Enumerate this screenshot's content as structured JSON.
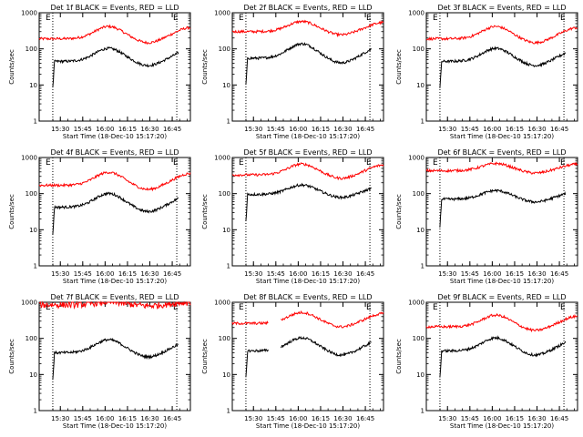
{
  "chart_data": [
    {
      "type": "line",
      "title": "Det 1f BLACK = Events, RED = LLD",
      "xlabel": "Start Time (18-Dec-10 15:17:20)",
      "ylabel": "Counts/sec",
      "yscale": "log",
      "ylim": [
        1,
        1000
      ],
      "xlim": [
        0,
        100
      ],
      "x_ticks": [
        "15:30",
        "15:45",
        "16:00",
        "16:15",
        "16:30",
        "16:45"
      ],
      "y_ticks": [
        "1",
        "10",
        "100",
        "1000"
      ],
      "markers": [
        {
          "label": "E",
          "x": 9
        },
        {
          "label": "E",
          "x": 91
        }
      ],
      "series": [
        {
          "color": "#ff0000",
          "base": 190,
          "amp": 0.34,
          "start": 0,
          "end": 100
        },
        {
          "color": "#000000",
          "base": 45,
          "amp": 0.36,
          "start": 9,
          "end": 92,
          "drop_start": true
        }
      ]
    },
    {
      "type": "line",
      "title": "Det 2f BLACK = Events, RED = LLD",
      "xlabel": "Start Time (18-Dec-10 15:17:20)",
      "ylabel": "Counts/sec",
      "yscale": "log",
      "ylim": [
        1,
        1000
      ],
      "xlim": [
        0,
        100
      ],
      "x_ticks": [
        "15:30",
        "15:45",
        "16:00",
        "16:15",
        "16:30",
        "16:45"
      ],
      "y_ticks": [
        "1",
        "10",
        "100",
        "1000"
      ],
      "markers": [
        {
          "label": "E",
          "x": 9
        },
        {
          "label": "E",
          "x": 91
        }
      ],
      "series": [
        {
          "color": "#ff0000",
          "base": 300,
          "amp": 0.28,
          "start": 0,
          "end": 100
        },
        {
          "color": "#000000",
          "base": 55,
          "amp": 0.4,
          "start": 9,
          "end": 92,
          "drop_start": true
        }
      ]
    },
    {
      "type": "line",
      "title": "Det 3f BLACK = Events, RED = LLD",
      "xlabel": "Start Time (18-Dec-10 15:17:20)",
      "ylabel": "Counts/sec",
      "yscale": "log",
      "ylim": [
        1,
        1000
      ],
      "xlim": [
        0,
        100
      ],
      "x_ticks": [
        "15:30",
        "15:45",
        "16:00",
        "16:15",
        "16:30",
        "16:45"
      ],
      "y_ticks": [
        "1",
        "10",
        "100",
        "1000"
      ],
      "markers": [
        {
          "label": "E",
          "x": 9
        },
        {
          "label": "E",
          "x": 91
        }
      ],
      "series": [
        {
          "color": "#ff0000",
          "base": 190,
          "amp": 0.34,
          "start": 0,
          "end": 100
        },
        {
          "color": "#000000",
          "base": 45,
          "amp": 0.36,
          "start": 9,
          "end": 92,
          "drop_start": true
        }
      ]
    },
    {
      "type": "line",
      "title": "Det 4f BLACK = Events, RED = LLD",
      "xlabel": "Start Time (18-Dec-10 15:17:20)",
      "ylabel": "Counts/sec",
      "yscale": "log",
      "ylim": [
        1,
        1000
      ],
      "xlim": [
        0,
        100
      ],
      "x_ticks": [
        "15:30",
        "15:45",
        "16:00",
        "16:15",
        "16:30",
        "16:45"
      ],
      "y_ticks": [
        "1",
        "10",
        "100",
        "1000"
      ],
      "markers": [
        {
          "label": "E",
          "x": 9
        },
        {
          "label": "E",
          "x": 91
        }
      ],
      "series": [
        {
          "color": "#ff0000",
          "base": 170,
          "amp": 0.36,
          "start": 0,
          "end": 100
        },
        {
          "color": "#000000",
          "base": 42,
          "amp": 0.38,
          "start": 9,
          "end": 92,
          "drop_start": true
        }
      ]
    },
    {
      "type": "line",
      "title": "Det 5f BLACK = Events, RED = LLD",
      "xlabel": "Start Time (18-Dec-10 15:17:20)",
      "ylabel": "Counts/sec",
      "yscale": "log",
      "ylim": [
        1,
        1000
      ],
      "xlim": [
        0,
        100
      ],
      "x_ticks": [
        "15:30",
        "15:45",
        "16:00",
        "16:15",
        "16:30",
        "16:45"
      ],
      "y_ticks": [
        "1",
        "10",
        "100",
        "1000"
      ],
      "markers": [
        {
          "label": "E",
          "x": 9
        },
        {
          "label": "E",
          "x": 91
        }
      ],
      "series": [
        {
          "color": "#ff0000",
          "base": 330,
          "amp": 0.3,
          "start": 0,
          "end": 100
        },
        {
          "color": "#000000",
          "base": 95,
          "amp": 0.26,
          "start": 9,
          "end": 92,
          "drop_start": true
        }
      ]
    },
    {
      "type": "line",
      "title": "Det 6f BLACK = Events, RED = LLD",
      "xlabel": "Start Time (18-Dec-10 15:17:20)",
      "ylabel": "Counts/sec",
      "yscale": "log",
      "ylim": [
        1,
        1000
      ],
      "xlim": [
        0,
        100
      ],
      "x_ticks": [
        "15:30",
        "15:45",
        "16:00",
        "16:15",
        "16:30",
        "16:45"
      ],
      "y_ticks": [
        "1",
        "10",
        "100",
        "1000"
      ],
      "markers": [
        {
          "label": "E",
          "x": 9
        },
        {
          "label": "E",
          "x": 91
        }
      ],
      "series": [
        {
          "color": "#ff0000",
          "base": 430,
          "amp": 0.2,
          "start": 0,
          "end": 100
        },
        {
          "color": "#000000",
          "base": 70,
          "amp": 0.24,
          "start": 9,
          "end": 92,
          "drop_start": true
        }
      ]
    },
    {
      "type": "line",
      "title": "Det 7f BLACK = Events, RED = LLD",
      "xlabel": "Start Time (18-Dec-10 15:17:20)",
      "ylabel": "Counts/sec",
      "yscale": "log",
      "ylim": [
        1,
        1000
      ],
      "xlim": [
        0,
        100
      ],
      "x_ticks": [
        "15:30",
        "15:45",
        "16:00",
        "16:15",
        "16:30",
        "16:45"
      ],
      "y_ticks": [
        "1",
        "10",
        "100",
        "1000"
      ],
      "markers": [
        {
          "label": "E",
          "x": 9
        },
        {
          "label": "E",
          "x": 91
        }
      ],
      "series": [
        {
          "color": "#ff0000",
          "base": 850,
          "amp": 0.08,
          "start": 0,
          "end": 100,
          "noise": 0.09
        },
        {
          "color": "#000000",
          "base": 40,
          "amp": 0.36,
          "start": 9,
          "end": 92,
          "drop_start": true
        }
      ]
    },
    {
      "type": "line",
      "title": "Det 8f BLACK = Events, RED = LLD",
      "xlabel": "Start Time (18-Dec-10 15:17:20)",
      "ylabel": "Counts/sec",
      "yscale": "log",
      "ylim": [
        1,
        1000
      ],
      "xlim": [
        0,
        100
      ],
      "x_ticks": [
        "15:30",
        "15:45",
        "16:00",
        "16:15",
        "16:30",
        "16:45"
      ],
      "y_ticks": [
        "1",
        "10",
        "100",
        "1000"
      ],
      "markers": [
        {
          "label": "E",
          "x": 9
        },
        {
          "label": "E",
          "x": 91
        }
      ],
      "gap": [
        24,
        32
      ],
      "series": [
        {
          "color": "#ff0000",
          "base": 260,
          "amp": 0.3,
          "start": 0,
          "end": 100
        },
        {
          "color": "#000000",
          "base": 45,
          "amp": 0.36,
          "start": 9,
          "end": 92,
          "drop_start": true
        }
      ]
    },
    {
      "type": "line",
      "title": "Det 9f BLACK = Events, RED = LLD",
      "xlabel": "Start Time (18-Dec-10 15:17:20)",
      "ylabel": "Counts/sec",
      "yscale": "log",
      "ylim": [
        1,
        1000
      ],
      "xlim": [
        0,
        100
      ],
      "x_ticks": [
        "15:30",
        "15:45",
        "16:00",
        "16:15",
        "16:30",
        "16:45"
      ],
      "y_ticks": [
        "1",
        "10",
        "100",
        "1000"
      ],
      "markers": [
        {
          "label": "E",
          "x": 9
        },
        {
          "label": "E",
          "x": 91
        }
      ],
      "series": [
        {
          "color": "#ff0000",
          "base": 210,
          "amp": 0.32,
          "start": 0,
          "end": 100
        },
        {
          "color": "#000000",
          "base": 45,
          "amp": 0.36,
          "start": 9,
          "end": 92,
          "drop_start": true
        }
      ]
    }
  ]
}
